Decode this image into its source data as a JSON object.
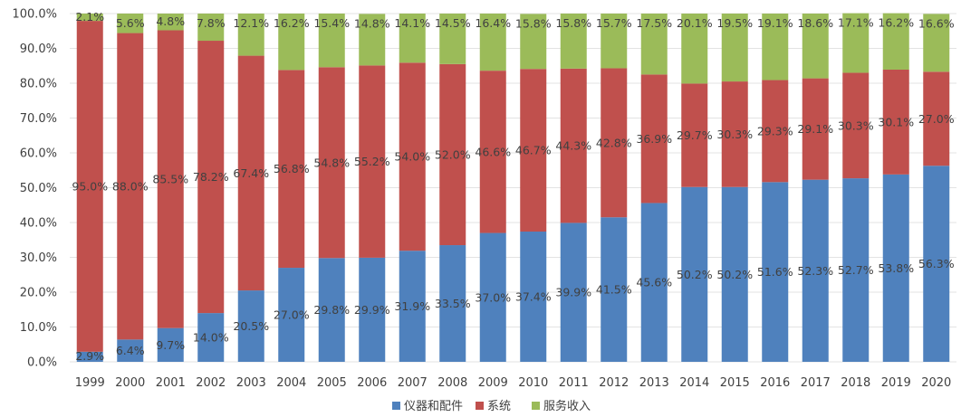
{
  "chart_data": {
    "type": "bar",
    "stacked": true,
    "percent": true,
    "categories": [
      "1999",
      "2000",
      "2001",
      "2002",
      "2003",
      "2004",
      "2005",
      "2006",
      "2007",
      "2008",
      "2009",
      "2010",
      "2011",
      "2012",
      "2013",
      "2014",
      "2015",
      "2016",
      "2017",
      "2018",
      "2019",
      "2020"
    ],
    "series": [
      {
        "name": "仪器和配件",
        "color": "#4f81bd",
        "values": [
          2.9,
          6.4,
          9.7,
          14.0,
          20.5,
          27.0,
          29.8,
          29.9,
          31.9,
          33.5,
          37.0,
          37.4,
          39.9,
          41.5,
          45.6,
          50.2,
          50.2,
          51.6,
          52.3,
          52.7,
          53.8,
          56.3
        ],
        "labels": [
          "2.9%",
          "6.4%",
          "9.7%",
          "14.0%",
          "20.5%",
          "27.0%",
          "29.8%",
          "29.9%",
          "31.9%",
          "33.5%",
          "37.0%",
          "37.4%",
          "39.9%",
          "41.5%",
          "45.6%",
          "50.2%",
          "50.2%",
          "51.6%",
          "52.3%",
          "52.7%",
          "53.8%",
          "56.3%"
        ]
      },
      {
        "name": "系统",
        "color": "#c0504d",
        "values": [
          95.0,
          88.0,
          85.5,
          78.2,
          67.4,
          56.8,
          54.8,
          55.2,
          54.0,
          52.0,
          46.6,
          46.7,
          44.3,
          42.8,
          36.9,
          29.7,
          30.3,
          29.3,
          29.1,
          30.3,
          30.1,
          27.0
        ],
        "labels": [
          "95.0%",
          "88.0%",
          "85.5%",
          "78.2%",
          "67.4%",
          "56.8%",
          "54.8%",
          "55.2%",
          "54.0%",
          "52.0%",
          "46.6%",
          "46.7%",
          "44.3%",
          "42.8%",
          "36.9%",
          "29.7%",
          "30.3%",
          "29.3%",
          "29.1%",
          "30.3%",
          "30.1%",
          "27.0%"
        ]
      },
      {
        "name": "服务收入",
        "color": "#9bbb59",
        "values": [
          2.1,
          5.6,
          4.8,
          7.8,
          12.1,
          16.2,
          15.4,
          14.8,
          14.1,
          14.5,
          16.4,
          15.8,
          15.8,
          15.7,
          17.5,
          20.1,
          19.5,
          19.1,
          18.6,
          17.1,
          16.2,
          16.6
        ],
        "labels": [
          "2.1%",
          "5.6%",
          "4.8%",
          "7.8%",
          "12.1%",
          "16.2%",
          "15.4%",
          "14.8%",
          "14.1%",
          "14.5%",
          "16.4%",
          "15.8%",
          "15.8%",
          "15.7%",
          "17.5%",
          "20.1%",
          "19.5%",
          "19.1%",
          "18.6%",
          "17.1%",
          "16.2%",
          "16.6%"
        ]
      }
    ],
    "ylim": [
      0,
      100
    ],
    "y_ticks": [
      0,
      10,
      20,
      30,
      40,
      50,
      60,
      70,
      80,
      90,
      100
    ],
    "y_tick_labels": [
      "0.0%",
      "10.0%",
      "20.0%",
      "30.0%",
      "40.0%",
      "50.0%",
      "60.0%",
      "70.0%",
      "80.0%",
      "90.0%",
      "100.0%"
    ],
    "grid": true,
    "legend_position": "bottom",
    "title": "",
    "xlabel": "",
    "ylabel": ""
  }
}
